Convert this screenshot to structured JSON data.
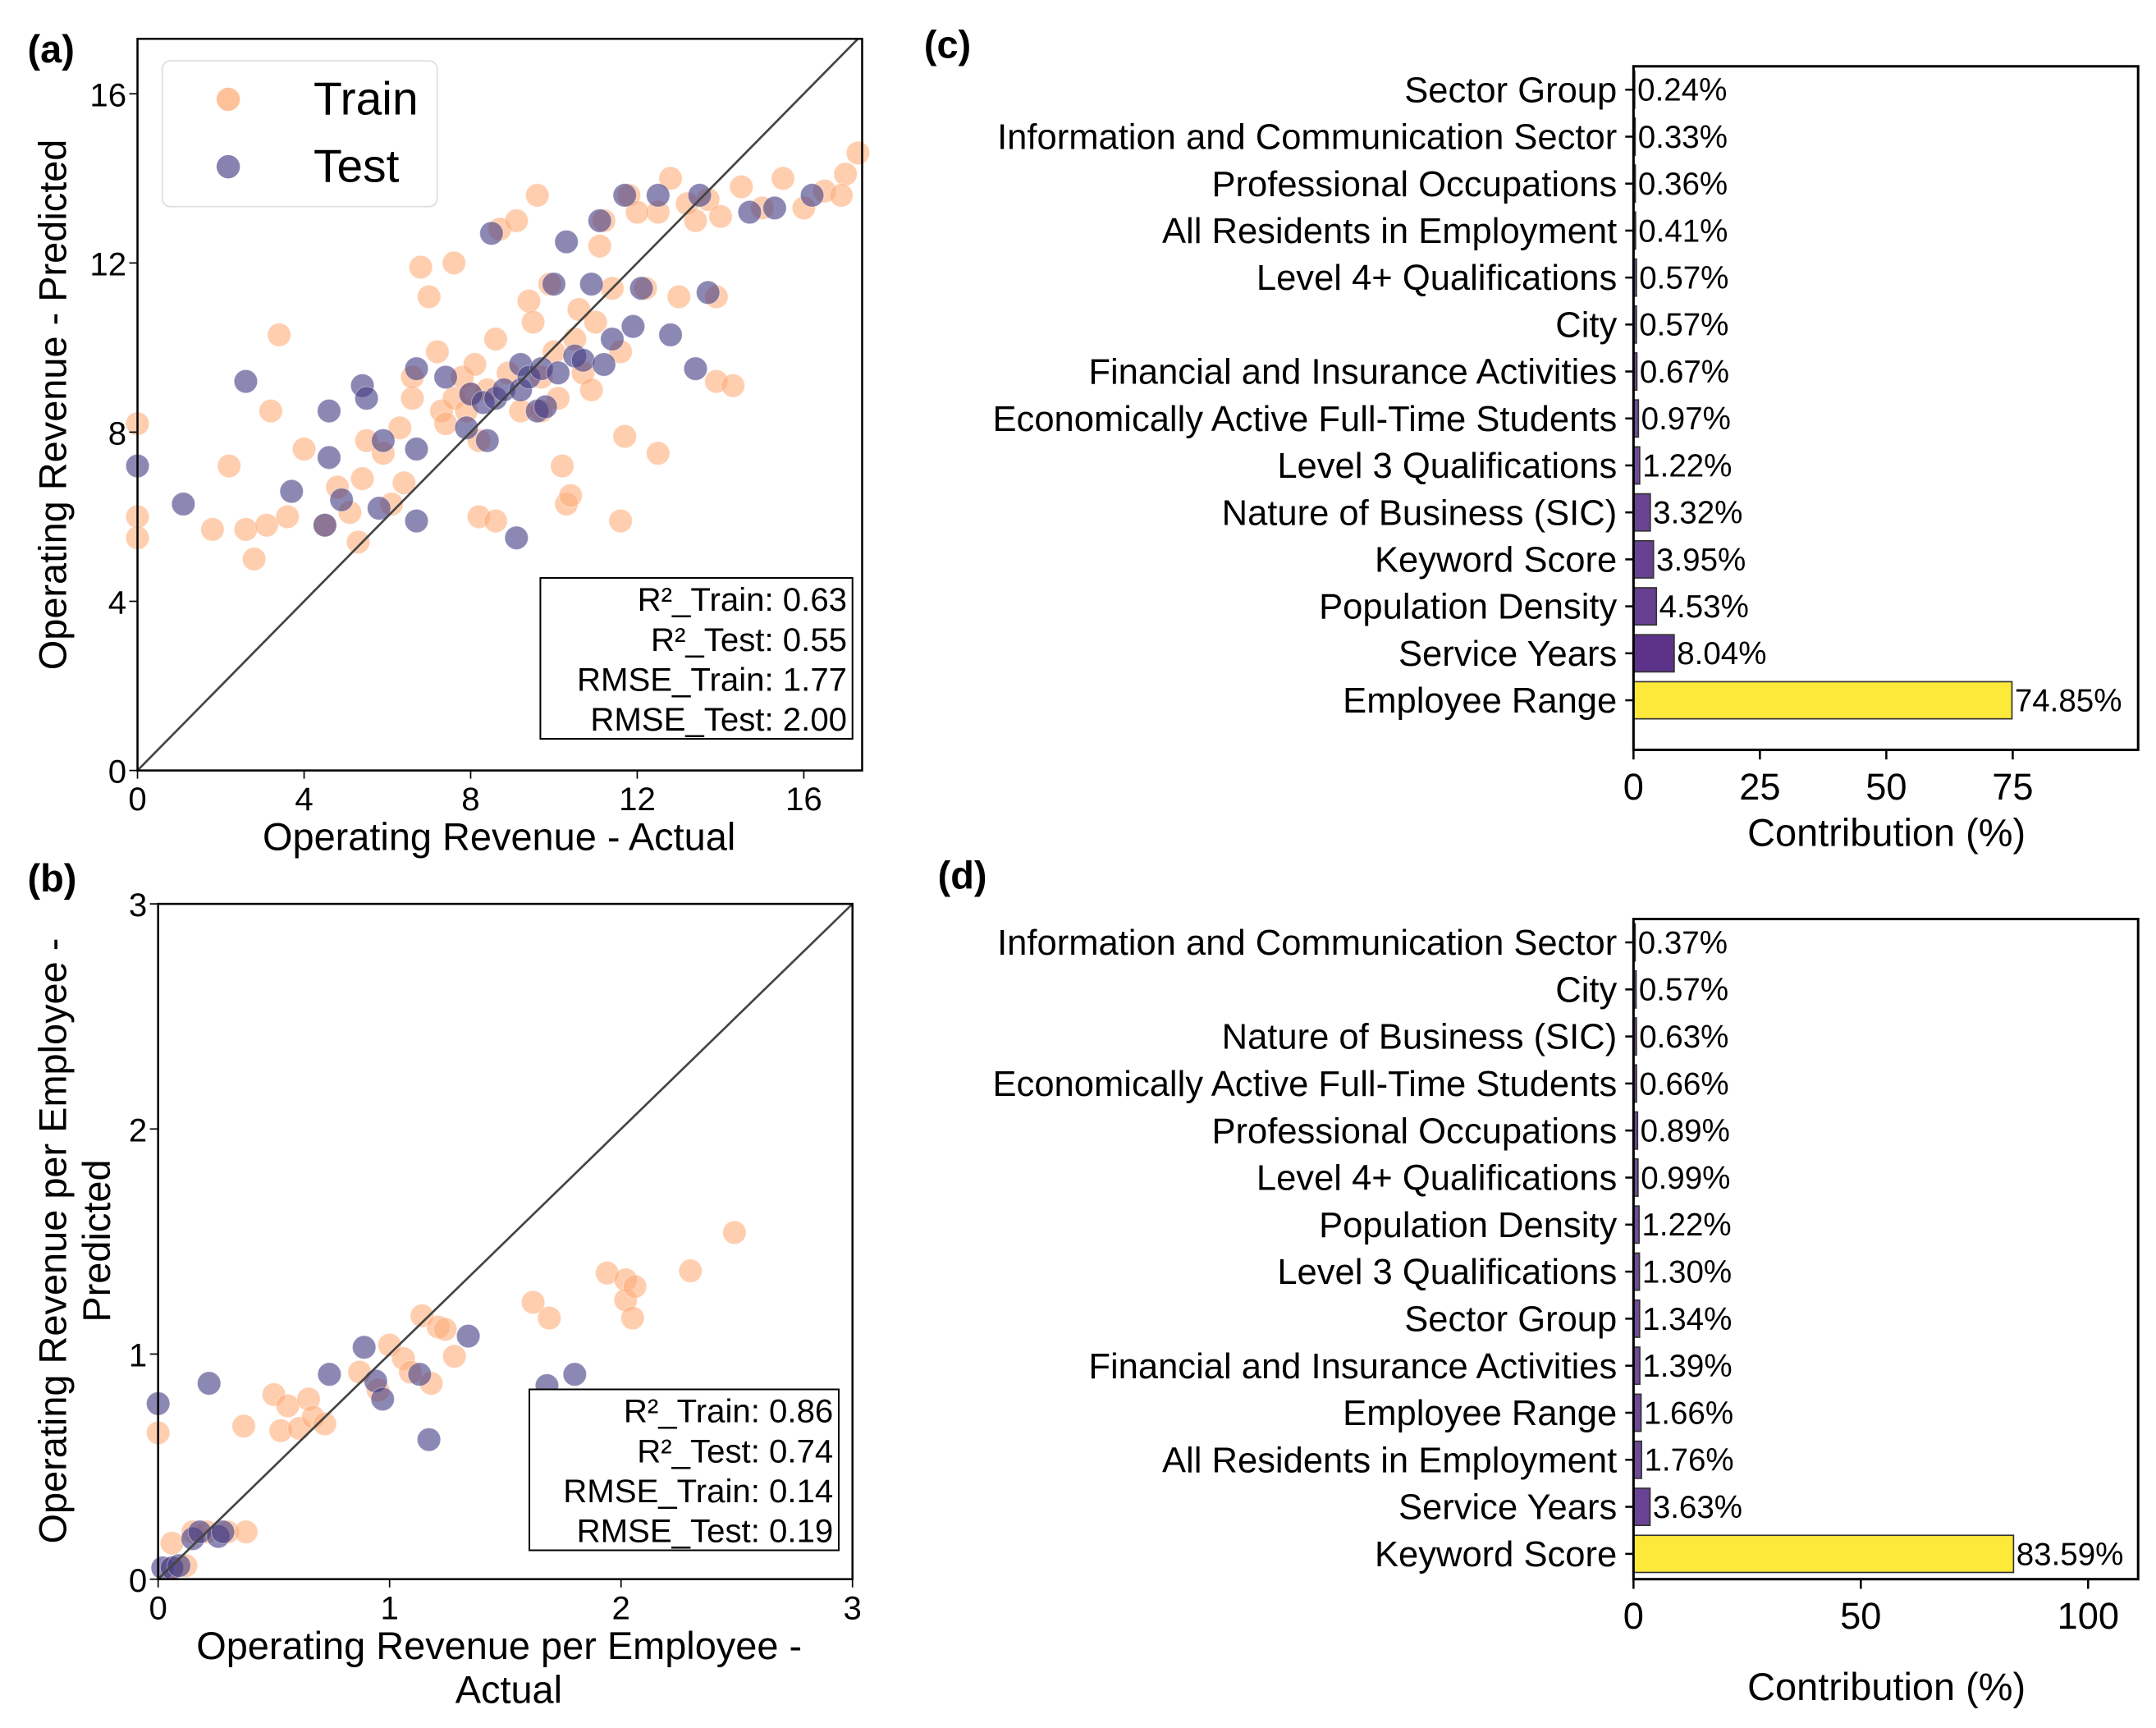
{
  "colors": {
    "train": "#fdae7a",
    "test": "#463f86",
    "top_bar": "#fde93a",
    "minor_bar": "#5a3088",
    "diagonal": "#444444"
  },
  "chart_data": [
    {
      "panel": "(a)",
      "type": "scatter",
      "xlabel": "Operating Revenue - Actual",
      "ylabel": "Operating Revenue - Predicted",
      "xlim": [
        0,
        17.4
      ],
      "ylim": [
        0,
        17.3
      ],
      "xticks": [
        "0",
        "4",
        "8",
        "12",
        "16"
      ],
      "yticks": [
        "0",
        "4",
        "8",
        "12",
        "16"
      ],
      "legend": {
        "position": "top-left",
        "entries": [
          "Train",
          "Test"
        ]
      },
      "reference_line": "y = x",
      "stats": [
        "R²_Train: 0.63",
        "R²_Test: 0.55",
        "RMSE_Train: 1.77",
        "RMSE_Test: 2.00"
      ],
      "series": [
        {
          "name": "Train",
          "points": [
            [
              0,
              8.2
            ],
            [
              0,
              6.0
            ],
            [
              0,
              5.5
            ],
            [
              1.8,
              5.7
            ],
            [
              2.2,
              7.2
            ],
            [
              2.6,
              5.7
            ],
            [
              2.8,
              5.0
            ],
            [
              3.1,
              5.8
            ],
            [
              3.4,
              10.3
            ],
            [
              3.2,
              8.5
            ],
            [
              3.6,
              6.0
            ],
            [
              4.0,
              7.6
            ],
            [
              4.5,
              5.8
            ],
            [
              4.8,
              6.7
            ],
            [
              5.1,
              6.1
            ],
            [
              5.4,
              6.9
            ],
            [
              5.5,
              7.8
            ],
            [
              5.9,
              7.5
            ],
            [
              6.1,
              6.3
            ],
            [
              6.3,
              8.1
            ],
            [
              6.6,
              8.8
            ],
            [
              6.8,
              11.9
            ],
            [
              7.0,
              11.2
            ],
            [
              7.2,
              9.9
            ],
            [
              7.3,
              8.5
            ],
            [
              7.6,
              8.8
            ],
            [
              7.8,
              9.3
            ],
            [
              7.9,
              8.5
            ],
            [
              8.1,
              9.6
            ],
            [
              8.2,
              7.8
            ],
            [
              8.4,
              9.0
            ],
            [
              8.6,
              10.2
            ],
            [
              8.7,
              12.8
            ],
            [
              9.1,
              13.0
            ],
            [
              9.2,
              8.5
            ],
            [
              9.4,
              11.1
            ],
            [
              9.6,
              13.6
            ],
            [
              9.7,
              9.3
            ],
            [
              9.9,
              11.5
            ],
            [
              10.1,
              8.8
            ],
            [
              10.2,
              7.2
            ],
            [
              10.3,
              6.3
            ],
            [
              10.4,
              6.5
            ],
            [
              10.6,
              10.9
            ],
            [
              10.7,
              9.4
            ],
            [
              10.9,
              9.0
            ],
            [
              11.1,
              12.4
            ],
            [
              11.2,
              13.0
            ],
            [
              11.4,
              11.4
            ],
            [
              11.6,
              9.9
            ],
            [
              11.7,
              7.9
            ],
            [
              11.6,
              5.9
            ],
            [
              11.8,
              13.6
            ],
            [
              12.2,
              11.4
            ],
            [
              12.5,
              7.5
            ],
            [
              12.5,
              13.2
            ],
            [
              12.8,
              14.0
            ],
            [
              13.0,
              11.2
            ],
            [
              13.4,
              13.0
            ],
            [
              13.7,
              13.5
            ],
            [
              13.9,
              11.2
            ],
            [
              13.9,
              9.2
            ],
            [
              14.3,
              9.1
            ],
            [
              14.5,
              13.8
            ],
            [
              15.0,
              13.3
            ],
            [
              15.5,
              14.0
            ],
            [
              16.0,
              13.3
            ],
            [
              16.5,
              13.7
            ],
            [
              17.0,
              14.1
            ],
            [
              17.3,
              14.6
            ],
            [
              16.9,
              13.6
            ],
            [
              5.3,
              5.4
            ],
            [
              6.4,
              6.8
            ],
            [
              8.2,
              6.0
            ],
            [
              8.6,
              5.9
            ],
            [
              9.7,
              8.5
            ],
            [
              6.6,
              9.3
            ],
            [
              7.6,
              12.0
            ],
            [
              8.9,
              9.4
            ],
            [
              9.5,
              10.6
            ],
            [
              10.0,
              9.9
            ],
            [
              10.5,
              10.2
            ],
            [
              8.0,
              8.9
            ],
            [
              7.4,
              8.2
            ],
            [
              11.0,
              10.6
            ],
            [
              12.0,
              13.2
            ],
            [
              13.2,
              13.4
            ],
            [
              14.0,
              13.1
            ]
          ]
        },
        {
          "name": "Test",
          "points": [
            [
              0,
              7.2
            ],
            [
              1.1,
              6.3
            ],
            [
              2.6,
              9.2
            ],
            [
              3.7,
              6.6
            ],
            [
              4.5,
              5.8
            ],
            [
              4.6,
              8.5
            ],
            [
              4.6,
              7.4
            ],
            [
              4.9,
              6.4
            ],
            [
              5.4,
              9.1
            ],
            [
              5.5,
              8.8
            ],
            [
              5.8,
              6.2
            ],
            [
              5.9,
              7.8
            ],
            [
              6.7,
              7.6
            ],
            [
              6.7,
              5.9
            ],
            [
              6.7,
              9.5
            ],
            [
              7.4,
              9.3
            ],
            [
              7.9,
              8.1
            ],
            [
              8.0,
              8.9
            ],
            [
              8.3,
              8.7
            ],
            [
              8.4,
              7.8
            ],
            [
              8.5,
              12.7
            ],
            [
              8.6,
              8.8
            ],
            [
              8.8,
              9.0
            ],
            [
              9.1,
              5.5
            ],
            [
              9.2,
              9.0
            ],
            [
              9.2,
              9.6
            ],
            [
              9.4,
              9.3
            ],
            [
              9.6,
              8.5
            ],
            [
              9.7,
              9.5
            ],
            [
              9.8,
              8.6
            ],
            [
              10.0,
              11.5
            ],
            [
              10.1,
              9.4
            ],
            [
              10.3,
              12.5
            ],
            [
              10.5,
              9.8
            ],
            [
              10.7,
              9.7
            ],
            [
              10.9,
              11.5
            ],
            [
              11.1,
              13.0
            ],
            [
              11.2,
              9.6
            ],
            [
              11.4,
              10.2
            ],
            [
              11.7,
              13.6
            ],
            [
              11.9,
              10.5
            ],
            [
              12.1,
              11.4
            ],
            [
              12.5,
              13.6
            ],
            [
              12.8,
              10.3
            ],
            [
              13.4,
              9.5
            ],
            [
              13.7,
              11.3
            ],
            [
              13.5,
              13.6
            ],
            [
              14.7,
              13.2
            ],
            [
              15.3,
              13.3
            ],
            [
              16.2,
              13.6
            ]
          ]
        }
      ]
    },
    {
      "panel": "(b)",
      "type": "scatter",
      "xlabel": [
        "Operating Revenue per Employee -",
        "Actual"
      ],
      "ylabel": [
        "Operating Revenue per Employee -",
        "Predicted"
      ],
      "xlim": [
        0,
        3
      ],
      "ylim": [
        0,
        3
      ],
      "xticks": [
        "0",
        "1",
        "2",
        "3"
      ],
      "yticks": [
        "0",
        "1",
        "2",
        "3"
      ],
      "reference_line": "y = x",
      "stats": [
        "R²_Train: 0.86",
        "R²_Test: 0.74",
        "RMSE_Train: 0.14",
        "RMSE_Test: 0.19"
      ],
      "series": [
        {
          "name": "Train",
          "points": [
            [
              0,
              0.65
            ],
            [
              0.37,
              0.68
            ],
            [
              0.5,
              0.82
            ],
            [
              0.53,
              0.66
            ],
            [
              0.56,
              0.77
            ],
            [
              0.65,
              0.8
            ],
            [
              0.61,
              0.67
            ],
            [
              0.67,
              0.72
            ],
            [
              0.72,
              0.69
            ],
            [
              0.87,
              0.92
            ],
            [
              0.95,
              0.84
            ],
            [
              1.0,
              1.04
            ],
            [
              1.06,
              0.98
            ],
            [
              1.09,
              0.92
            ],
            [
              1.14,
              1.17
            ],
            [
              1.18,
              0.87
            ],
            [
              1.21,
              1.12
            ],
            [
              1.24,
              1.11
            ],
            [
              1.28,
              0.99
            ],
            [
              1.62,
              1.23
            ],
            [
              1.69,
              1.16
            ],
            [
              1.94,
              1.36
            ],
            [
              2.02,
              1.33
            ],
            [
              2.02,
              1.24
            ],
            [
              2.06,
              1.3
            ],
            [
              2.05,
              1.16
            ],
            [
              2.3,
              1.37
            ],
            [
              2.49,
              1.54
            ],
            [
              0.06,
              0.16
            ],
            [
              0.15,
              0.21
            ],
            [
              0.21,
              0.21
            ],
            [
              0.3,
              0.21
            ],
            [
              0.38,
              0.21
            ],
            [
              0.06,
              0.05
            ],
            [
              0.12,
              0.06
            ]
          ]
        },
        {
          "name": "Test",
          "points": [
            [
              0,
              0.78
            ],
            [
              0.22,
              0.87
            ],
            [
              0.74,
              0.91
            ],
            [
              0.89,
              1.03
            ],
            [
              0.94,
              0.88
            ],
            [
              0.97,
              0.8
            ],
            [
              1.13,
              0.91
            ],
            [
              1.17,
              0.62
            ],
            [
              1.34,
              1.08
            ],
            [
              1.68,
              0.86
            ],
            [
              1.8,
              0.91
            ],
            [
              0.15,
              0.18
            ],
            [
              0.18,
              0.21
            ],
            [
              0.26,
              0.19
            ],
            [
              0.28,
              0.21
            ],
            [
              0.02,
              0.05
            ],
            [
              0.06,
              0.05
            ],
            [
              0.09,
              0.06
            ]
          ]
        }
      ]
    },
    {
      "panel": "(c)",
      "type": "bar",
      "orientation": "horizontal",
      "xlabel": "Contribution (%)",
      "xlim": [
        0,
        99.8
      ],
      "xticks": [
        "0",
        "25",
        "50",
        "75"
      ],
      "categories": [
        "Sector Group",
        "Information and Communication Sector",
        "Professional Occupations",
        "All Residents in Employment",
        "Level 4+ Qualifications",
        "City",
        "Financial and Insurance Activities",
        "Economically Active Full-Time Students",
        "Level 3 Qualifications",
        "Nature of Business (SIC)",
        "Keyword Score",
        "Population Density",
        "Service Years",
        "Employee Range"
      ],
      "values": [
        0.24,
        0.33,
        0.36,
        0.41,
        0.57,
        0.57,
        0.67,
        0.97,
        1.22,
        3.32,
        3.95,
        4.53,
        8.04,
        74.85
      ],
      "labels": [
        "0.24%",
        "0.33%",
        "0.36%",
        "0.41%",
        "0.57%",
        "0.57%",
        "0.67%",
        "0.97%",
        "1.22%",
        "3.32%",
        "3.95%",
        "4.53%",
        "8.04%",
        "74.85%"
      ]
    },
    {
      "panel": "(d)",
      "type": "bar",
      "orientation": "horizontal",
      "xlabel": "Contribution (%)",
      "xlim": [
        0,
        111
      ],
      "xticks": [
        "0",
        "50",
        "100"
      ],
      "categories": [
        "Information and Communication Sector",
        "City",
        "Nature of Business (SIC)",
        "Economically Active Full-Time Students",
        "Professional Occupations",
        "Level 4+ Qualifications",
        "Population Density",
        "Level 3 Qualifications",
        "Sector Group",
        "Financial and Insurance Activities",
        "Employee Range",
        "All Residents in Employment",
        "Service Years",
        "Keyword Score"
      ],
      "values": [
        0.37,
        0.57,
        0.63,
        0.66,
        0.89,
        0.99,
        1.22,
        1.3,
        1.34,
        1.39,
        1.66,
        1.76,
        3.63,
        83.59
      ],
      "labels": [
        "0.37%",
        "0.57%",
        "0.63%",
        "0.66%",
        "0.89%",
        "0.99%",
        "1.22%",
        "1.30%",
        "1.34%",
        "1.39%",
        "1.66%",
        "1.76%",
        "3.63%",
        "83.59%"
      ]
    }
  ]
}
